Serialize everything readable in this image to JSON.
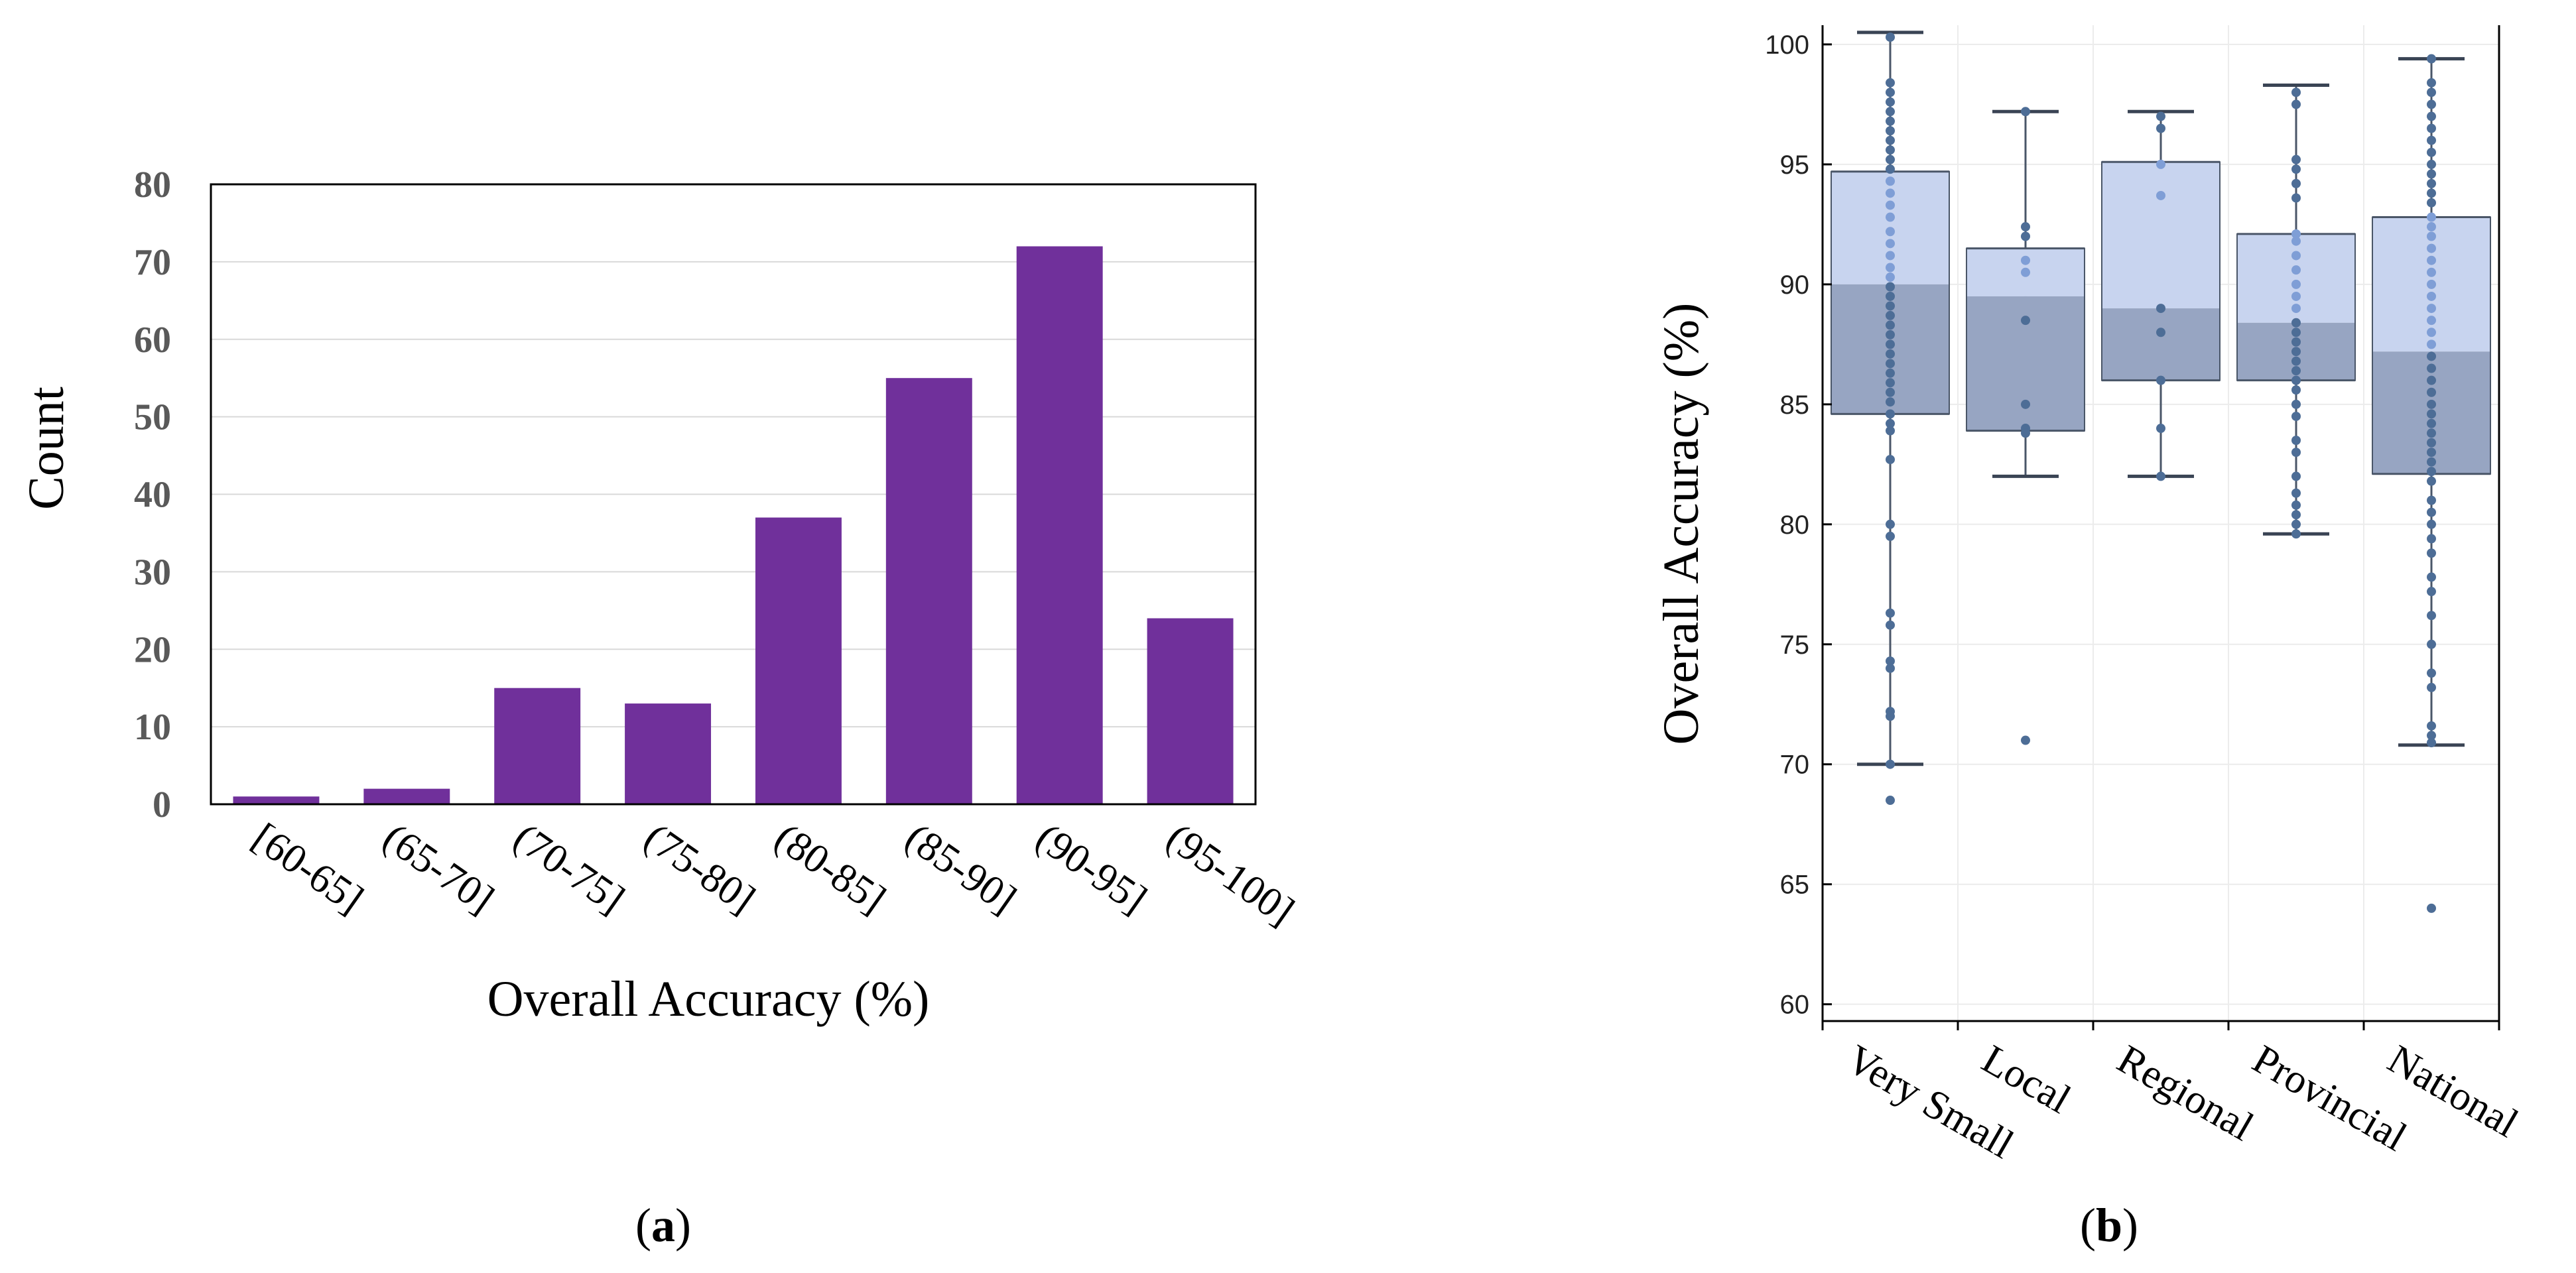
{
  "panels": {
    "a": {
      "caption_open": "(",
      "caption_letter": "a",
      "caption_close": ")"
    },
    "b": {
      "caption_open": "(",
      "caption_letter": "b",
      "caption_close": ")"
    }
  },
  "colors": {
    "bar": "#70309b",
    "box_upper": "#c8d4ef",
    "box_lower": "#97a5c2",
    "box_edge": "#4a5668",
    "point": "#4d6d96",
    "point_light": "#7f9ed6"
  },
  "chart_data": [
    {
      "type": "bar",
      "title": "",
      "xlabel": "Overall Accuracy (%)",
      "ylabel": "Count",
      "ylim": [
        0,
        80
      ],
      "yticks": [
        0,
        10,
        20,
        30,
        40,
        50,
        60,
        70,
        80
      ],
      "grid": true,
      "categories": [
        "[60-65]",
        "(65-70]",
        "(70-75]",
        "(75-80]",
        "(80-85]",
        "(85-90]",
        "(90-95]",
        "(95-100]"
      ],
      "values": [
        1,
        2,
        15,
        13,
        37,
        55,
        72,
        24
      ]
    },
    {
      "type": "box",
      "title": "",
      "xlabel": "",
      "ylabel": "Overall Accuracy (%)",
      "ylim": [
        59.3,
        100.8
      ],
      "yticks": [
        60,
        65,
        70,
        75,
        80,
        85,
        90,
        95,
        100
      ],
      "grid": true,
      "categories": [
        "Very Small",
        "Local",
        "Regional",
        "Provincial",
        "National"
      ],
      "boxes": [
        {
          "whisker_low": 70,
          "q1": 84.6,
          "median": 90,
          "q3": 94.7,
          "whisker_high": 100.5,
          "points": [
            100.3,
            98.4,
            98,
            97.6,
            97.2,
            96.8,
            96.4,
            96,
            95.6,
            95.2,
            94.8,
            94.3,
            93.8,
            93.3,
            92.8,
            92.2,
            91.7,
            91.2,
            90.7,
            90.3,
            89.9,
            89.5,
            89.1,
            88.7,
            88.3,
            87.9,
            87.5,
            87.1,
            86.7,
            86.3,
            85.9,
            85.5,
            85.1,
            84.6,
            84.2,
            83.9,
            82.7,
            80,
            79.5,
            76.3,
            75.8,
            74.3,
            74,
            72.2,
            72,
            70,
            68.5
          ]
        },
        {
          "whisker_low": 82,
          "q1": 83.9,
          "median": 89.5,
          "q3": 91.5,
          "whisker_high": 97.2,
          "points": [
            97.2,
            92.4,
            92,
            91,
            90.5,
            88.5,
            85,
            84,
            83.8,
            71
          ]
        },
        {
          "whisker_low": 82,
          "q1": 86,
          "median": 89,
          "q3": 95.1,
          "whisker_high": 97.2,
          "points": [
            97,
            96.5,
            95,
            93.7,
            89,
            88,
            86,
            84,
            82
          ]
        },
        {
          "whisker_low": 79.6,
          "q1": 86,
          "median": 88.4,
          "q3": 92.1,
          "whisker_high": 98.3,
          "points": [
            98,
            97.5,
            95.2,
            94.8,
            94.2,
            93.6,
            92.1,
            91.8,
            91.2,
            90.6,
            90,
            89.5,
            89,
            88.4,
            88,
            87.6,
            87.2,
            86.8,
            86.4,
            86,
            85.6,
            85,
            84.5,
            83.5,
            83,
            82,
            81.3,
            80.8,
            80.4,
            80,
            79.6
          ]
        },
        {
          "whisker_low": 70.8,
          "q1": 82.1,
          "median": 87.2,
          "q3": 92.8,
          "whisker_high": 99.4,
          "points": [
            99.4,
            98.4,
            98,
            97.5,
            97,
            96.5,
            96,
            95.5,
            95,
            94.6,
            94.2,
            93.8,
            93.4,
            92.8,
            92.4,
            92,
            91.5,
            91,
            90.5,
            90,
            89.5,
            89,
            88.5,
            88,
            87.5,
            87,
            86.5,
            86,
            85.5,
            85,
            84.6,
            84.2,
            83.8,
            83.4,
            83,
            82.6,
            82.2,
            81.8,
            81,
            80.5,
            80,
            79.4,
            78.8,
            77.8,
            77.2,
            76.2,
            75,
            73.8,
            73.2,
            71.6,
            71.2,
            70.9,
            64
          ]
        }
      ]
    }
  ]
}
